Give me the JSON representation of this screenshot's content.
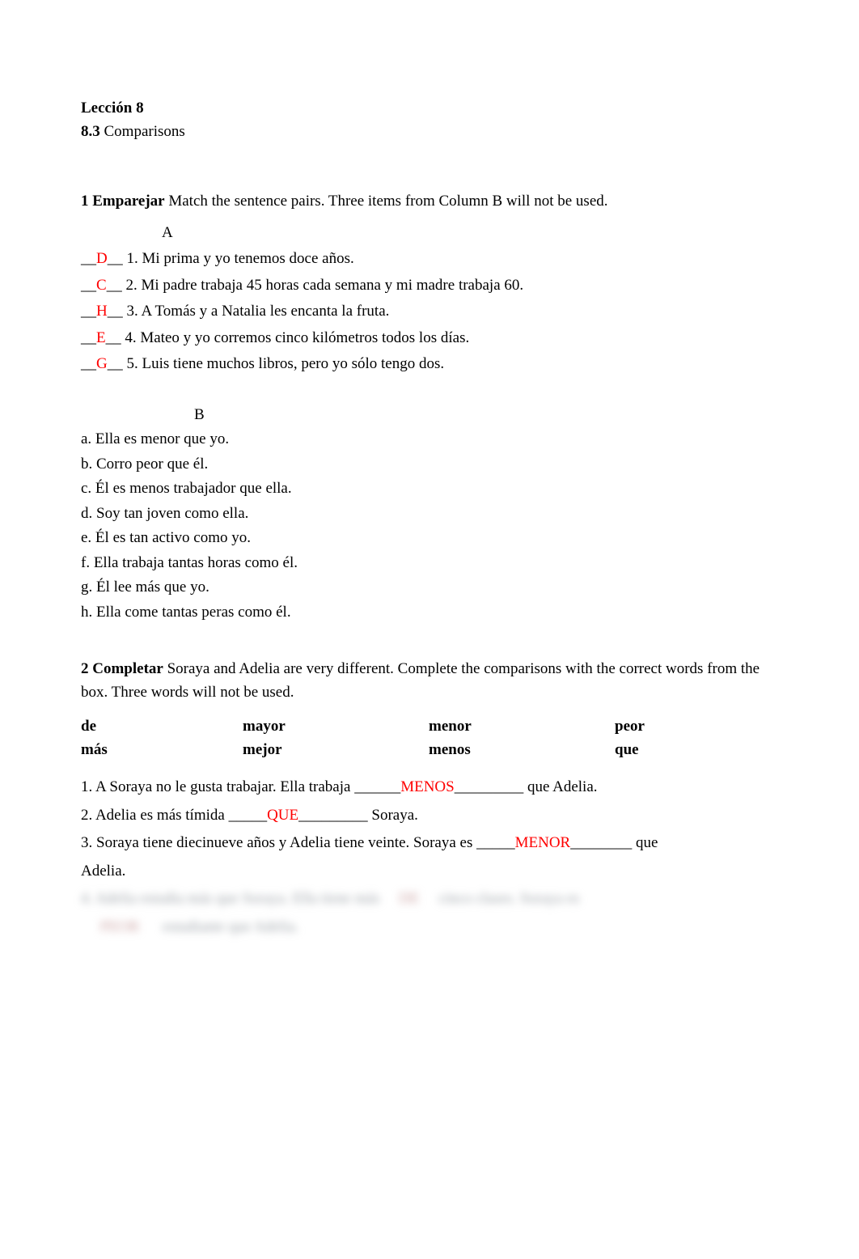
{
  "header": {
    "lesson": "Lección 8",
    "subsection_num": "8.3",
    "subsection_title": "Comparisons"
  },
  "ex1": {
    "num": "1",
    "title": "Emparejar",
    "instr": "Match the sentence pairs. Three items from Column B will not be used.",
    "colA_label": "A",
    "items": [
      {
        "ans": "D",
        "num": "1.",
        "text": "Mi prima y yo tenemos doce años."
      },
      {
        "ans": "C",
        "num": "2.",
        "text": "Mi padre trabaja 45 horas cada semana y mi madre trabaja 60."
      },
      {
        "ans": "H",
        "num": "3.",
        "text": "A Tomás y a Natalia les encanta la fruta."
      },
      {
        "ans": "E",
        "num": "4.",
        "text": "Mateo y yo corremos cinco kilómetros todos los días."
      },
      {
        "ans": "G",
        "num": "5.",
        "text": "Luis tiene muchos libros, pero yo sólo tengo dos."
      }
    ],
    "colB_label": "B",
    "colB": [
      "a. Ella es menor que yo.",
      "b. Corro peor que él.",
      "c. Él es menos trabajador que ella.",
      "d. Soy tan joven como ella.",
      "e. Él es tan activo como yo.",
      "f. Ella trabaja tantas horas como él.",
      "g. Él lee más que yo.",
      "h. Ella come tantas peras como él."
    ]
  },
  "ex2": {
    "num": "2",
    "title": "Completar",
    "instr": "Soraya and Adelia are very different. Complete the comparisons with the correct words from the box. Three words will not be used.",
    "box": {
      "c1a": "de",
      "c1b": "más",
      "c2a": "mayor",
      "c2b": "mejor",
      "c3a": "menor",
      "c3b": "menos",
      "c4a": "peor",
      "c4b": "que"
    },
    "q1_a": "1. A Soraya no le gusta trabajar. Ella trabaja ______",
    "q1_ans": "MENOS",
    "q1_b": "_________ que Adelia.",
    "q2_a": "2. Adelia es más tímida _____",
    "q2_ans": "QUE",
    "q2_b": "_________ Soraya.",
    "q3_a": "3. Soraya tiene diecinueve años y Adelia tiene veinte. Soraya es  _____",
    "q3_ans": "MENOR",
    "q3_b": "________ que",
    "q3_c": "Adelia.",
    "blurred1": "4. Adelia estudia más que Soraya. Ella tiene más",
    "blurred1_red": "DE",
    "blurred1_b": "cinco clases. Soraya es",
    "blurred2_red": "PEOR",
    "blurred2": "estudiante que Adelia."
  }
}
